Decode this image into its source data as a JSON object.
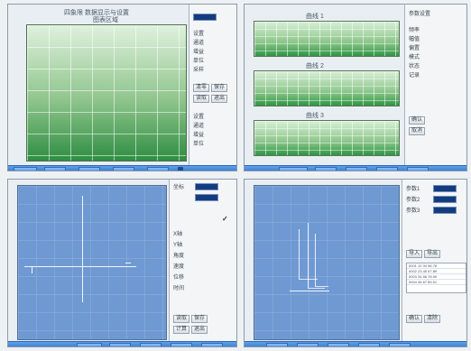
{
  "quadrant1": {
    "title": "四象限 数据显示与设置",
    "subtitle": "图表区域",
    "right_panel": {
      "tag": "参数",
      "items": [
        "设置",
        "通道",
        "增益",
        "单位",
        "采样"
      ],
      "buttons": [
        "清零",
        "保存",
        "读取",
        "退出"
      ]
    },
    "footer_buttons": [
      "开始",
      "暂停",
      "停止",
      "打印",
      "帮助"
    ]
  },
  "quadrant2": {
    "plots": [
      "曲线 1",
      "曲线 2",
      "曲线 3"
    ],
    "right_panel": {
      "title": "参数设置",
      "items": [
        "频率",
        "幅值",
        "偏置",
        "模式",
        "状态",
        "记录"
      ],
      "buttons": [
        "确认",
        "取消"
      ]
    },
    "footer_buttons": [
      "开始",
      "暂停",
      "停止",
      "打印",
      "帮助"
    ]
  },
  "quadrant3": {
    "right_panel": {
      "label_top": "坐标",
      "items": [
        "X轴",
        "Y轴",
        "角度",
        "速度",
        "位移",
        "时间"
      ],
      "buttons": [
        "读取",
        "保存",
        "计算",
        "退出"
      ]
    },
    "footer_buttons": [
      "开始",
      "暂停",
      "停止",
      "打印",
      "帮助"
    ]
  },
  "quadrant4": {
    "right_panel": {
      "items": [
        "参数1",
        "参数2",
        "参数3"
      ],
      "buttons": [
        "导入",
        "导出",
        "确认",
        "清除"
      ],
      "table_rows": [
        "0001 12.34 56.78",
        "0002 23.45 67.89",
        "0003 34.56 78.90",
        "0004 45.67 89.01"
      ]
    },
    "footer_buttons": [
      "开始",
      "暂停",
      "停止",
      "打印",
      "帮助"
    ]
  }
}
